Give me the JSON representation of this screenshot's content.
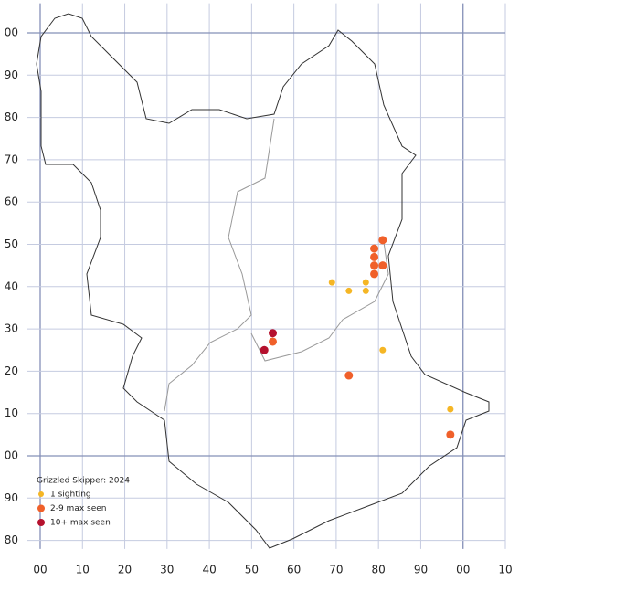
{
  "chart_data": {
    "type": "scatter",
    "legend_title": "Grizzled Skipper:  2024",
    "xlim": [
      0,
      110
    ],
    "ylim": [
      -22,
      107
    ],
    "xticks": [
      {
        "value": 0,
        "label": "00"
      },
      10,
      20,
      30,
      40,
      50,
      60,
      70,
      80,
      90,
      {
        "value": 100,
        "label": "00"
      },
      {
        "value": 110,
        "label": "10"
      }
    ],
    "yticks": [
      {
        "value": 100,
        "label": "00"
      },
      90,
      80,
      70,
      60,
      50,
      40,
      30,
      20,
      10,
      {
        "value": 0,
        "label": "00"
      },
      {
        "value": -10,
        "label": "90"
      },
      {
        "value": -20,
        "label": "80"
      }
    ],
    "grid": true,
    "legend": "lower left",
    "series": [
      {
        "name": "1 sighting",
        "color": "#f5b625",
        "x": [
          69,
          73,
          77,
          77,
          81,
          97
        ],
        "values": [
          41,
          39,
          41,
          39,
          25,
          11
        ]
      },
      {
        "name": "2-9 max seen",
        "color": "#f0602a",
        "x": [
          81,
          79,
          79,
          79,
          81,
          79,
          55,
          73,
          97
        ],
        "values": [
          51,
          49,
          47,
          45,
          45,
          43,
          27,
          19,
          5
        ]
      },
      {
        "name": "10+ max seen",
        "color": "#b5112e",
        "x": [
          55,
          53
        ],
        "values": [
          29,
          25
        ]
      }
    ]
  }
}
